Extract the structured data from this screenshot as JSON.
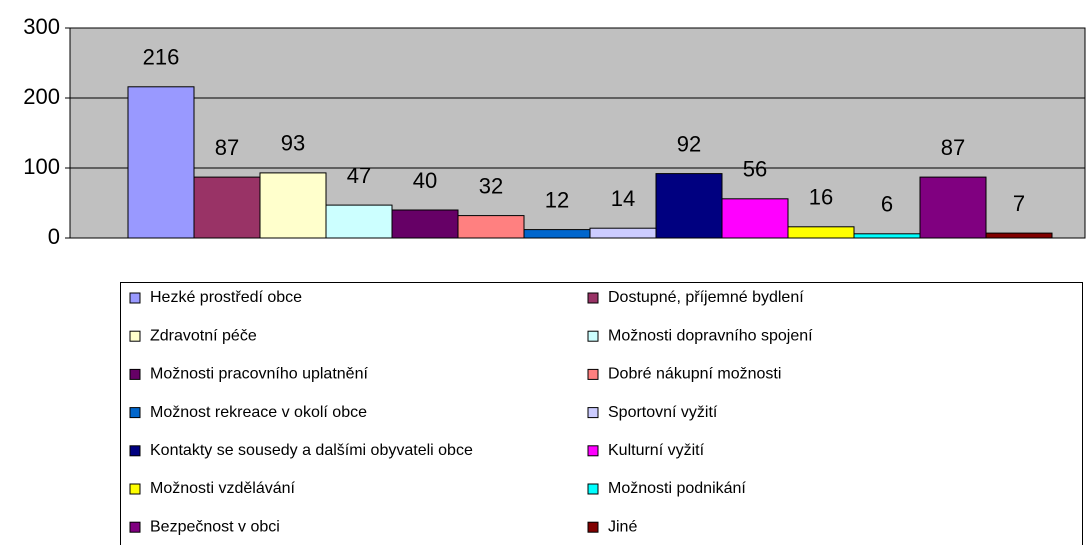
{
  "chart_data": {
    "type": "bar",
    "categories": [
      "Hezké prostředí obce",
      "Dostupné, příjemné bydlení",
      "Zdravotní péče",
      "Možnosti dopravního spojení",
      "Možnosti pracovního uplatnění",
      "Dobré nákupní možnosti",
      "Možnost rekreace v okolí obce",
      "Sportovní vyžití",
      "Kontakty se sousedy a dalšími obyvateli obce",
      "Kulturní vyžití",
      "Možnosti vzdělávání",
      "Možnosti podnikání",
      "Bezpečnost v obci",
      "Jiné"
    ],
    "values": [
      216,
      87,
      93,
      47,
      40,
      32,
      12,
      14,
      92,
      56,
      16,
      6,
      87,
      7
    ],
    "colors": [
      "#9999ff",
      "#993366",
      "#ffffcc",
      "#ccffff",
      "#660066",
      "#ff8080",
      "#0066cc",
      "#ccccff",
      "#000080",
      "#ff00ff",
      "#ffff00",
      "#00ffff",
      "#800080",
      "#800000"
    ],
    "ylim": [
      0,
      300
    ],
    "yticks": [
      0,
      100,
      200,
      300
    ],
    "grid": true,
    "legend": "bottom"
  }
}
